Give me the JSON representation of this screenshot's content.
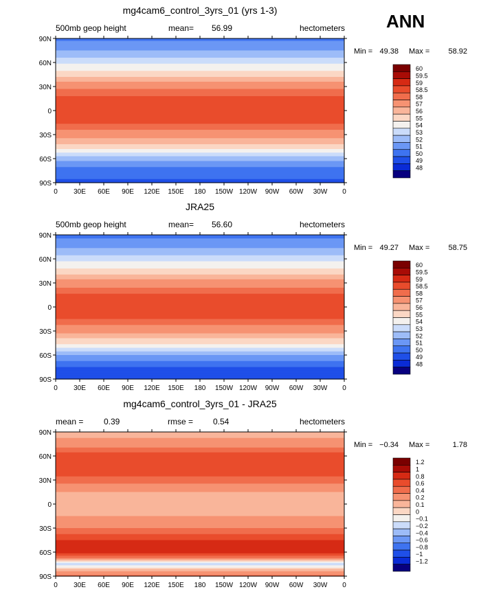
{
  "season": "ANN",
  "colors": {
    "abs_scale": [
      "#08007f",
      "#0a2bd6",
      "#1f4fe8",
      "#3e73f0",
      "#6b97f5",
      "#9dbcf8",
      "#cbdcfa",
      "#f4f1ee",
      "#fbd7c4",
      "#f9b59a",
      "#f69272",
      "#f06d4c",
      "#e94c2c",
      "#d62a14",
      "#a80c06",
      "#7a0000"
    ],
    "diff_scale": [
      "#08007f",
      "#0a2bd6",
      "#1f4fe8",
      "#3e73f0",
      "#6b97f5",
      "#9dbcf8",
      "#cbdcfa",
      "#f4f1ee",
      "#fbd7c4",
      "#f9b59a",
      "#f69272",
      "#f06d4c",
      "#e94c2c",
      "#d62a14",
      "#a80c06",
      "#7a0000"
    ]
  },
  "x_ticks": [
    "0",
    "30E",
    "60E",
    "90E",
    "120E",
    "150E",
    "180",
    "150W",
    "120W",
    "90W",
    "60W",
    "30W",
    "0"
  ],
  "y_ticks": [
    "90N",
    "60N",
    "30N",
    "0",
    "30S",
    "60S",
    "90S"
  ],
  "chart_data": [
    {
      "type": "heatmap",
      "title": "mg4cam6_control_3yrs_01 (yrs 1-3)",
      "left_label": "500mb geop height",
      "center_label": "mean=",
      "center_value": "56.99",
      "right_label": "hectometers",
      "min_label": "Min =",
      "min_value": "49.38",
      "max_label": "Max =",
      "max_value": "58.92",
      "colorbar_levels": [
        "60",
        "59.5",
        "59",
        "58.5",
        "58",
        "57",
        "56",
        "55",
        "54",
        "53",
        "52",
        "51",
        "50",
        "49",
        "48"
      ],
      "zonal_profile": {
        "lat": [
          90,
          75,
          60,
          45,
          30,
          15,
          0,
          -15,
          -30,
          -45,
          -60,
          -75,
          -90
        ],
        "value": [
          50.8,
          52.0,
          53.8,
          55.6,
          57.8,
          58.7,
          58.8,
          58.6,
          57.6,
          55.5,
          52.5,
          50.2,
          49.9
        ]
      }
    },
    {
      "type": "heatmap",
      "title": "JRA25",
      "left_label": "500mb geop height",
      "center_label": "mean=",
      "center_value": "56.60",
      "right_label": "hectometers",
      "min_label": "Min =",
      "min_value": "49.27",
      "max_label": "Max =",
      "max_value": "58.75",
      "colorbar_levels": [
        "60",
        "59.5",
        "59",
        "58.5",
        "58",
        "57",
        "56",
        "55",
        "54",
        "53",
        "52",
        "51",
        "50",
        "49",
        "48"
      ],
      "zonal_profile": {
        "lat": [
          90,
          75,
          60,
          45,
          30,
          15,
          0,
          -15,
          -30,
          -45,
          -60,
          -75,
          -90
        ],
        "value": [
          50.7,
          51.8,
          53.6,
          55.4,
          57.6,
          58.6,
          58.7,
          58.5,
          57.4,
          55.2,
          52.0,
          49.9,
          49.5
        ]
      }
    },
    {
      "type": "heatmap",
      "title": "mg4cam6_control_3yrs_01 - JRA25",
      "left_label": "mean =",
      "left_value": "0.39",
      "center_label": "rmse =",
      "center_value": "0.54",
      "right_label": "hectometers",
      "min_label": "Min =",
      "min_value": "−0.34",
      "max_label": "Max =",
      "max_value": "1.78",
      "colorbar_levels": [
        "1.2",
        "1",
        "0.8",
        "0.6",
        "0.4",
        "0.2",
        "0.1",
        "0",
        "−0.1",
        "−0.2",
        "−0.4",
        "−0.6",
        "−0.8",
        "−1",
        "−1.2"
      ],
      "zonal_profile": {
        "lat": [
          90,
          75,
          60,
          45,
          30,
          15,
          0,
          -15,
          -30,
          -45,
          -60,
          -75,
          -90
        ],
        "value": [
          0.1,
          0.3,
          0.7,
          0.8,
          0.5,
          0.2,
          0.1,
          0.2,
          0.4,
          0.8,
          0.9,
          -0.2,
          0.5
        ]
      }
    }
  ]
}
